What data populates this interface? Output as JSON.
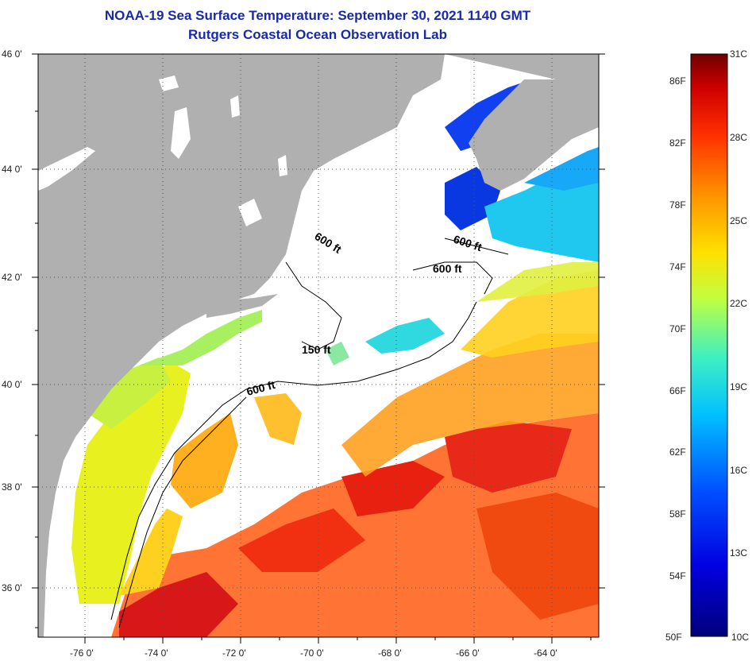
{
  "title": "NOAA-19 Sea Surface Temperature:  September 30, 2021 1140 GMT",
  "subtitle": "Rutgers Coastal Ocean Observation Lab",
  "lat_ticks": [
    "46 0'",
    "44 0'",
    "42 0'",
    "40 0'",
    "38 0'",
    "36 0'"
  ],
  "lon_ticks": [
    "-76 0'",
    "-74 0'",
    "-72 0'",
    "-70 0'",
    "-68 0'",
    "-66 0'",
    "-64 0'"
  ],
  "contour_labels": [
    "600 ft",
    "600 ft",
    "150 ft",
    "600 ft"
  ],
  "colorbar": {
    "f_labels": [
      "86F",
      "82F",
      "78F",
      "74F",
      "70F",
      "66F",
      "62F",
      "58F",
      "54F",
      "50F"
    ],
    "c_labels": [
      "31C",
      "28C",
      "25C",
      "22C",
      "19C",
      "16C",
      "13C",
      "10C"
    ]
  },
  "colors": {
    "land": "#b0b0b0",
    "cloud": "#ffffff",
    "title": "#1a2aa6"
  }
}
